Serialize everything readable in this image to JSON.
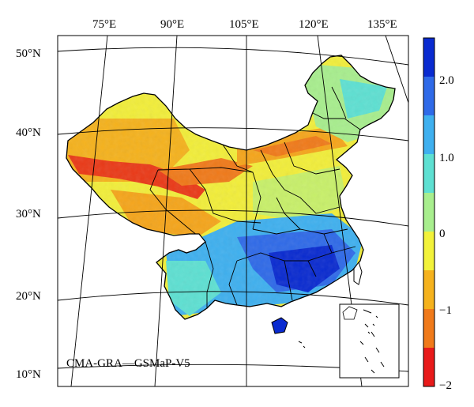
{
  "map": {
    "title": "CMA-GRA—GSMaP-V5",
    "longitude_labels": [
      "75°E",
      "90°E",
      "105°E",
      "120°E",
      "135°E"
    ],
    "latitude_labels": [
      "50°N",
      "40°N",
      "30°N",
      "20°N",
      "10°N"
    ],
    "inset": "South China Sea islands inset"
  },
  "colorbar": {
    "tick_labels": [
      "2.0",
      "1.0",
      "0",
      "−1",
      "−2"
    ],
    "range": [
      -2,
      2.5
    ],
    "colors_top_to_bottom": [
      "#0a2bd0",
      "#2f6ae8",
      "#3fb0ef",
      "#5ee0d2",
      "#a8ee8e",
      "#f2f23a",
      "#f5b21d",
      "#f07a1a",
      "#e81a1a"
    ]
  }
}
